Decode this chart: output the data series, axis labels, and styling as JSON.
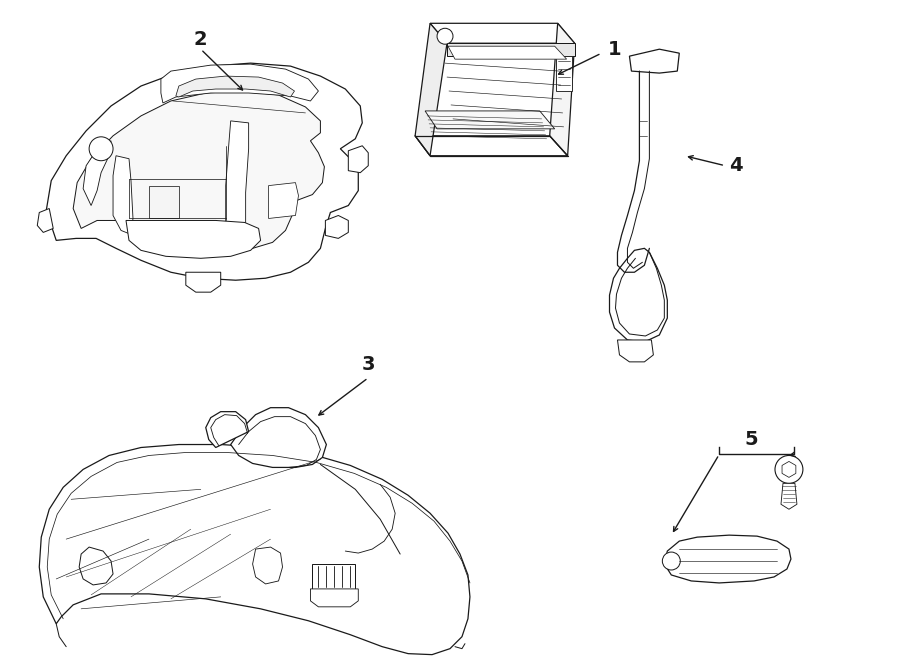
{
  "background_color": "#ffffff",
  "line_color": "#1a1a1a",
  "label_color": "#000000",
  "fig_width": 9.0,
  "fig_height": 6.61,
  "dpi": 100,
  "lw": 0.9,
  "font_size": 13
}
